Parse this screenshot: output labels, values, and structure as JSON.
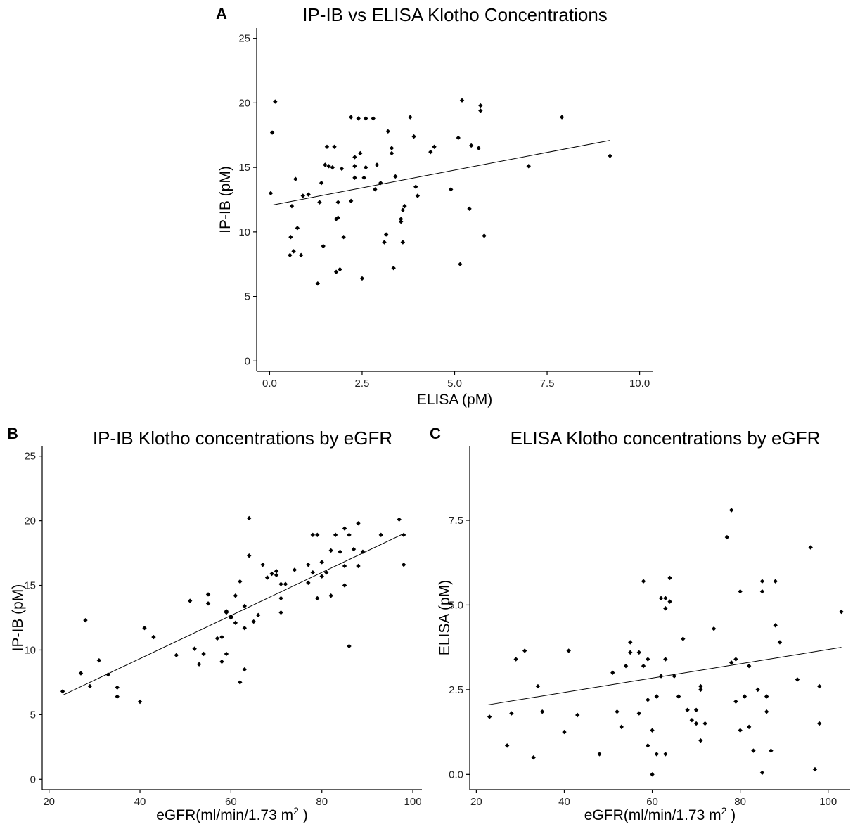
{
  "figure": {
    "panels": [
      {
        "letter": "A"
      },
      {
        "letter": "B"
      },
      {
        "letter": "C"
      }
    ]
  },
  "chart_data": [
    {
      "type": "scatter",
      "title": "IP-IB vs ELISA Klotho Concentrations",
      "xlabel": "ELISA (pM)",
      "ylabel": "IP-IB (pM)",
      "xlim": [
        -0.35,
        10.35
      ],
      "ylim": [
        -0.8,
        25.8
      ],
      "xticks": [
        0,
        2.5,
        5,
        7.5,
        10
      ],
      "xtick_labels": [
        "0.0",
        "2.5",
        "5.0",
        "7.5",
        "10.0"
      ],
      "yticks": [
        0,
        5,
        10,
        15,
        20,
        25
      ],
      "ytick_labels": [
        "0",
        "5",
        "10",
        "15",
        "20",
        "25"
      ],
      "fit": {
        "x": [
          0.1,
          9.2
        ],
        "y": [
          12.1,
          17.1
        ]
      },
      "x": [
        0.03,
        0.07,
        0.15,
        0.55,
        0.57,
        0.6,
        0.65,
        0.7,
        0.75,
        0.85,
        0.9,
        1.05,
        1.3,
        1.35,
        1.4,
        1.45,
        1.5,
        1.55,
        1.6,
        1.7,
        1.75,
        1.8,
        1.8,
        1.85,
        1.85,
        1.9,
        1.95,
        2.0,
        2.2,
        2.2,
        2.3,
        2.3,
        2.3,
        2.4,
        2.45,
        2.5,
        2.55,
        2.6,
        2.6,
        2.8,
        2.85,
        2.9,
        3.0,
        3.1,
        3.15,
        3.2,
        3.3,
        3.3,
        3.35,
        3.4,
        3.55,
        3.55,
        3.6,
        3.6,
        3.65,
        3.8,
        3.9,
        3.95,
        4.0,
        4.35,
        4.45,
        4.9,
        5.1,
        5.15,
        5.2,
        5.4,
        5.45,
        5.65,
        5.7,
        5.7,
        5.8,
        7.0,
        7.9,
        9.2
      ],
      "y": [
        13.0,
        17.7,
        20.1,
        8.2,
        9.6,
        12.0,
        8.5,
        14.1,
        10.3,
        8.2,
        12.8,
        12.9,
        6.0,
        12.3,
        13.8,
        8.9,
        15.2,
        16.6,
        15.1,
        15.0,
        16.6,
        6.9,
        11.0,
        11.1,
        12.3,
        7.1,
        14.9,
        9.6,
        12.4,
        18.9,
        15.1,
        14.2,
        15.8,
        18.8,
        16.1,
        6.4,
        14.2,
        15.0,
        18.8,
        18.8,
        13.3,
        15.2,
        13.8,
        9.2,
        9.8,
        17.8,
        16.5,
        16.1,
        7.2,
        14.3,
        11.0,
        10.8,
        11.7,
        9.2,
        12.0,
        18.9,
        17.4,
        13.5,
        12.8,
        16.2,
        16.6,
        13.3,
        17.3,
        7.5,
        20.2,
        11.8,
        16.7,
        16.5,
        19.8,
        19.4,
        9.7,
        15.1,
        18.9,
        15.9
      ]
    },
    {
      "type": "scatter",
      "title": "IP-IB Klotho concentrations by eGFR",
      "xlabel": "eGFR(ml/min/1.73 m",
      "xlabel_superscript": "2",
      "xlabel_suffix": " )",
      "ylabel": "IP-IB (pM)",
      "xlim": [
        18.5,
        102.0
      ],
      "ylim": [
        -0.8,
        25.8
      ],
      "xticks": [
        20,
        40,
        60,
        80,
        100
      ],
      "xtick_labels": [
        "20",
        "40",
        "60",
        "80",
        "100"
      ],
      "yticks": [
        0,
        5,
        10,
        15,
        20,
        25
      ],
      "ytick_labels": [
        "0",
        "5",
        "10",
        "15",
        "20",
        "25"
      ],
      "fit": {
        "x": [
          23,
          98
        ],
        "y": [
          6.5,
          19.0
        ]
      },
      "x": [
        23,
        27,
        28,
        29,
        31,
        33,
        35,
        35,
        40,
        41,
        43,
        48,
        51,
        52,
        53,
        54,
        55,
        55,
        57,
        58,
        58,
        59,
        59,
        59,
        60,
        60,
        61,
        61,
        62,
        62,
        63,
        63,
        63,
        64,
        64,
        65,
        66,
        67,
        68,
        69,
        70,
        70,
        71,
        71,
        71,
        72,
        74,
        77,
        77,
        78,
        78,
        79,
        79,
        80,
        80,
        81,
        82,
        82,
        83,
        84,
        85,
        85,
        85,
        86,
        86,
        87,
        88,
        88,
        89,
        93,
        97,
        98,
        98
      ],
      "y": [
        6.8,
        8.2,
        12.3,
        7.2,
        9.2,
        8.1,
        6.4,
        7.1,
        6.0,
        11.7,
        11.0,
        9.6,
        13.8,
        10.1,
        8.9,
        9.7,
        14.3,
        13.6,
        10.9,
        11.0,
        9.1,
        9.7,
        13.0,
        12.9,
        12.5,
        12.6,
        12.1,
        14.2,
        15.3,
        7.5,
        13.4,
        8.5,
        11.7,
        17.3,
        20.2,
        12.2,
        12.7,
        16.6,
        15.6,
        15.9,
        15.8,
        16.1,
        15.1,
        14.0,
        12.9,
        15.1,
        16.2,
        16.6,
        15.2,
        16.0,
        18.9,
        18.9,
        14.0,
        16.8,
        15.7,
        16.0,
        17.7,
        14.2,
        18.9,
        17.6,
        15.0,
        16.5,
        19.4,
        10.3,
        18.9,
        17.8,
        16.5,
        19.8,
        17.6,
        18.9,
        20.1,
        18.9,
        16.6
      ]
    },
    {
      "type": "scatter",
      "title": "ELISA Klotho concentrations by eGFR",
      "xlabel": "eGFR(ml/min/1.73 m",
      "xlabel_superscript": "2",
      "xlabel_suffix": " )",
      "ylabel": "ELISA (pM)",
      "xlim": [
        18.5,
        105.0
      ],
      "ylim": [
        -0.45,
        9.7
      ],
      "xticks": [
        20,
        40,
        60,
        80,
        100
      ],
      "xtick_labels": [
        "20",
        "40",
        "60",
        "80",
        "100"
      ],
      "yticks": [
        0,
        2.5,
        5,
        7.5
      ],
      "ytick_labels": [
        "0.0",
        "2.5",
        "5.0",
        "7.5"
      ],
      "fit": {
        "x": [
          22.5,
          103
        ],
        "y": [
          2.05,
          3.75
        ]
      },
      "x": [
        23,
        27,
        28,
        29,
        31,
        33,
        34,
        35,
        40,
        41,
        43,
        48,
        51,
        52,
        53,
        54,
        55,
        55,
        57,
        57,
        58,
        58,
        59,
        59,
        59,
        60,
        60,
        61,
        61,
        62,
        62,
        63,
        63,
        63,
        63,
        64,
        64,
        65,
        66,
        67,
        68,
        69,
        70,
        70,
        71,
        71,
        71,
        72,
        74,
        77,
        78,
        78,
        79,
        79,
        80,
        80,
        81,
        82,
        82,
        83,
        84,
        85,
        85,
        85,
        86,
        86,
        87,
        88,
        88,
        89,
        93,
        96,
        97,
        98,
        98,
        103
      ],
      "y": [
        1.7,
        0.85,
        1.8,
        3.4,
        3.65,
        0.5,
        2.6,
        1.85,
        1.25,
        3.65,
        1.75,
        0.6,
        3.0,
        1.85,
        1.4,
        3.2,
        3.6,
        3.9,
        3.6,
        1.8,
        3.2,
        5.7,
        3.4,
        2.2,
        0.85,
        1.3,
        0.0,
        2.3,
        0.6,
        2.9,
        5.2,
        3.4,
        5.2,
        4.9,
        0.6,
        5.8,
        5.1,
        2.9,
        2.3,
        4.0,
        1.9,
        1.6,
        1.5,
        1.9,
        2.5,
        2.6,
        1.0,
        1.5,
        4.3,
        7.0,
        3.3,
        7.8,
        3.4,
        2.15,
        1.3,
        5.4,
        2.3,
        3.2,
        1.4,
        0.7,
        2.5,
        0.05,
        5.7,
        5.4,
        2.3,
        1.85,
        0.7,
        4.4,
        5.7,
        3.9,
        2.8,
        6.7,
        0.15,
        2.6,
        1.5,
        4.8
      ]
    }
  ]
}
